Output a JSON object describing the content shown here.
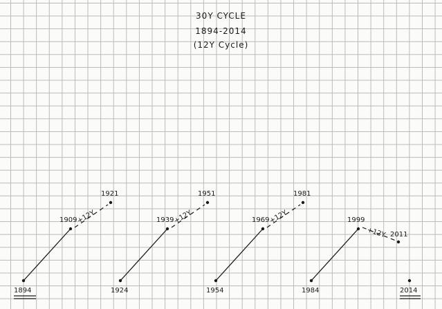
{
  "title": {
    "line1": "30Y CYCLE",
    "line2": "1894-2014",
    "line3": "(12Y Cycle)"
  },
  "ink_color": "#1a1a1a",
  "grid_color": "#b9b9b9",
  "cycles": [
    {
      "start": "1894",
      "mid": "1909",
      "end": "1921",
      "offset_label": "+12Y",
      "start_underlined": true
    },
    {
      "start": "1924",
      "mid": "1939",
      "end": "1951",
      "offset_label": "+12Y"
    },
    {
      "start": "1954",
      "mid": "1969",
      "end": "1981",
      "offset_label": "+12Y"
    },
    {
      "start": "1984",
      "mid": "1999",
      "end": "2011",
      "offset_label": "+12Y",
      "descending": true
    }
  ],
  "final_point": {
    "label": "2014",
    "underlined": true
  }
}
